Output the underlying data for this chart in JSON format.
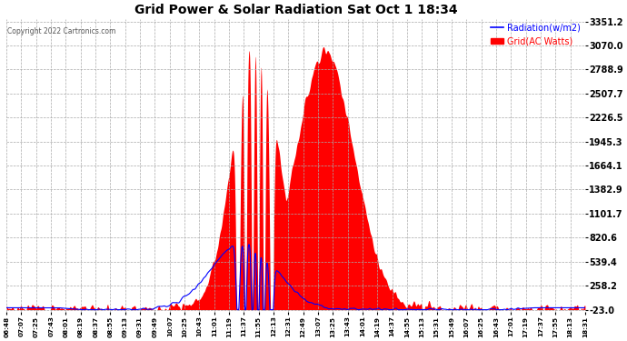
{
  "title": "Grid Power & Solar Radiation Sat Oct 1 18:34",
  "copyright": "Copyright 2022 Cartronics.com",
  "legend_radiation": "Radiation(w/m2)",
  "legend_grid": "Grid(AC Watts)",
  "y_min": -23.0,
  "y_max": 3351.2,
  "y_ticks": [
    -23.0,
    258.2,
    539.4,
    820.6,
    1101.7,
    1382.9,
    1664.1,
    1945.3,
    2226.5,
    2507.7,
    2788.9,
    3070.0,
    3351.2
  ],
  "x_labels": [
    "06:48",
    "07:07",
    "07:25",
    "07:43",
    "08:01",
    "08:19",
    "08:37",
    "08:55",
    "09:13",
    "09:31",
    "09:49",
    "10:07",
    "10:25",
    "10:43",
    "11:01",
    "11:19",
    "11:37",
    "11:55",
    "12:13",
    "12:31",
    "12:49",
    "13:07",
    "13:25",
    "13:43",
    "14:01",
    "14:19",
    "14:37",
    "14:55",
    "15:13",
    "15:31",
    "15:49",
    "16:07",
    "16:25",
    "16:43",
    "17:01",
    "17:19",
    "17:37",
    "17:55",
    "18:13",
    "18:31"
  ],
  "bg_color": "#ffffff",
  "grid_color": "#aaaaaa",
  "fill_color": "#ff0000",
  "line_color": "#0000ff",
  "title_color": "#000000",
  "copyright_color": "#555555",
  "legend_radiation_color": "#0000ff",
  "legend_grid_color": "#ff0000",
  "figwidth": 6.9,
  "figheight": 3.75,
  "dpi": 100
}
